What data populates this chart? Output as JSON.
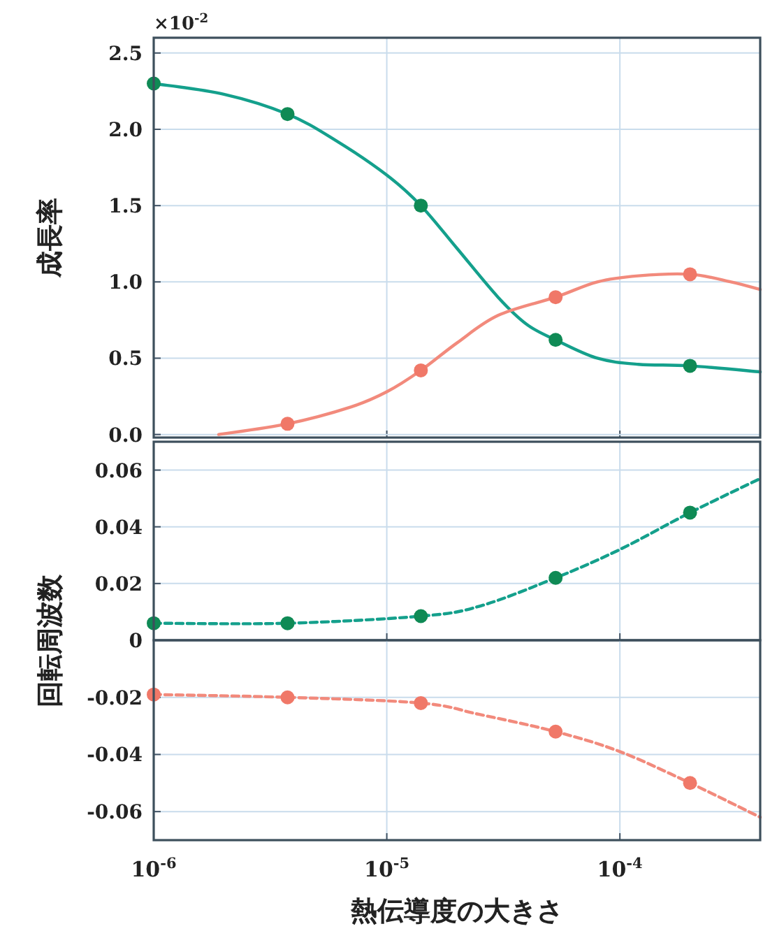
{
  "chart_data": [
    {
      "type": "line",
      "ylabel": "成長率",
      "annotations": [
        "×10$^{-2}$"
      ],
      "log": "x",
      "grid": true,
      "tick_labels": "y",
      "xlim": [
        1e-06,
        0.0004
      ],
      "xticks": [
        {
          "value": 1e-06,
          "label": null
        },
        {
          "value": 1e-05,
          "label": null
        },
        {
          "value": 0.0001,
          "label": null
        }
      ],
      "ylim": [
        -0.02,
        2.6
      ],
      "yticks": [
        {
          "value": 0,
          "label": "0.0"
        },
        0.5,
        {
          "value": 1,
          "label": "1.0"
        },
        1.5,
        {
          "value": 2,
          "label": "2.0"
        },
        2.5
      ],
      "series": [
        {
          "type": "line",
          "line_style": "solid",
          "color": "#14a08c",
          "x": [
            1e-06,
            2e-06,
            3.75e-06,
            6e-06,
            1e-05,
            1.4e-05,
            2e-05,
            3e-05,
            4e-05,
            5.3e-05,
            8e-05,
            0.00012,
            0.0002,
            0.0004
          ],
          "values": [
            2.3,
            2.23,
            2.1,
            1.93,
            1.7,
            1.5,
            1.22,
            0.9,
            0.72,
            0.62,
            0.5,
            0.46,
            0.45,
            0.41
          ]
        },
        {
          "type": "line",
          "line_style": "solid",
          "color": "#f28a7c",
          "x": [
            1.9e-06,
            3.75e-06,
            7e-06,
            1e-05,
            1.4e-05,
            2e-05,
            3e-05,
            5.3e-05,
            8e-05,
            0.00012,
            0.0002,
            0.0003,
            0.0004
          ],
          "values": [
            0,
            0.07,
            0.18,
            0.28,
            0.42,
            0.6,
            0.78,
            0.9,
            1.0,
            1.04,
            1.05,
            1.0,
            0.95
          ]
        },
        {
          "type": "scatter",
          "marker": "circle",
          "color": "#0f8a55",
          "x": [
            1e-06,
            3.75e-06,
            1.4e-05,
            5.3e-05,
            0.0002
          ],
          "values": [
            2.3,
            2.1,
            1.5,
            0.62,
            0.45
          ]
        },
        {
          "type": "scatter",
          "marker": "circle",
          "color": "#f07868",
          "x": [
            3.75e-06,
            1.4e-05,
            5.3e-05,
            0.0002
          ],
          "values": [
            0.07,
            0.42,
            0.9,
            1.05
          ]
        }
      ]
    },
    {
      "type": "line",
      "ylabel": "回転周波数",
      "log": "x",
      "grid": true,
      "tick_labels": "y",
      "xlim": [
        1e-06,
        0.0004
      ],
      "xticks": [
        {
          "value": 1e-06,
          "label": null
        },
        {
          "value": 1e-05,
          "label": null
        },
        {
          "value": 0.0001,
          "label": null
        }
      ],
      "ylim": [
        0,
        0.07
      ],
      "yticks": [
        0,
        0.02,
        0.04,
        0.06
      ],
      "series": [
        {
          "type": "line",
          "line_style": "dashed",
          "color": "#14a08c",
          "x": [
            1e-06,
            3.75e-06,
            1.4e-05,
            2.5e-05,
            5.3e-05,
            0.0001,
            0.0002,
            0.0004
          ],
          "values": [
            0.006,
            0.006,
            0.0085,
            0.012,
            0.022,
            0.032,
            0.045,
            0.057
          ]
        },
        {
          "type": "scatter",
          "marker": "circle",
          "color": "#0f8a55",
          "x": [
            1e-06,
            3.75e-06,
            1.4e-05,
            5.3e-05,
            0.0002
          ],
          "values": [
            0.006,
            0.006,
            0.0085,
            0.022,
            0.045
          ]
        }
      ]
    },
    {
      "type": "line",
      "xlabel": "熱伝導度の大きさ",
      "log": "x",
      "grid": true,
      "xlim": [
        1e-06,
        0.0004
      ],
      "xticks": [
        {
          "value": 1e-06,
          "label": "10$^{-6}$"
        },
        {
          "value": 1e-05,
          "label": "10$^{-5}$"
        },
        {
          "value": 0.0001,
          "label": "10$^{-4}$"
        }
      ],
      "ylim": [
        -0.07,
        0
      ],
      "yticks": [
        {
          "value": 0,
          "label": null
        },
        -0.02,
        -0.04,
        -0.06
      ],
      "series": [
        {
          "type": "line",
          "line_style": "dashed",
          "color": "#f28a7c",
          "x": [
            1e-06,
            3.75e-06,
            1.4e-05,
            2.5e-05,
            5.3e-05,
            0.0001,
            0.0002,
            0.0004
          ],
          "values": [
            -0.019,
            -0.02,
            -0.022,
            -0.026,
            -0.032,
            -0.039,
            -0.05,
            -0.062
          ]
        },
        {
          "type": "scatter",
          "marker": "circle",
          "color": "#f07868",
          "x": [
            1e-06,
            3.75e-06,
            1.4e-05,
            5.3e-05,
            0.0002
          ],
          "values": [
            -0.019,
            -0.02,
            -0.022,
            -0.032,
            -0.05
          ]
        }
      ]
    }
  ]
}
